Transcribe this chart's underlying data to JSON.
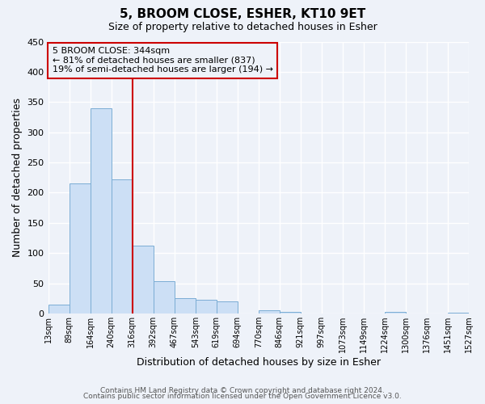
{
  "title": "5, BROOM CLOSE, ESHER, KT10 9ET",
  "subtitle": "Size of property relative to detached houses in Esher",
  "xlabel": "Distribution of detached houses by size in Esher",
  "ylabel": "Number of detached properties",
  "bin_labels": [
    "13sqm",
    "89sqm",
    "164sqm",
    "240sqm",
    "316sqm",
    "392sqm",
    "467sqm",
    "543sqm",
    "619sqm",
    "694sqm",
    "770sqm",
    "846sqm",
    "921sqm",
    "997sqm",
    "1073sqm",
    "1149sqm",
    "1224sqm",
    "1300sqm",
    "1376sqm",
    "1451sqm",
    "1527sqm"
  ],
  "counts": [
    15,
    215,
    340,
    222,
    113,
    53,
    25,
    23,
    20,
    0,
    6,
    3,
    0,
    0,
    0,
    0,
    3,
    0,
    0,
    2
  ],
  "bar_color": "#ccdff5",
  "bar_edge_color": "#7badd4",
  "vline_bin": 4,
  "vline_color": "#cc0000",
  "annotation_text": "5 BROOM CLOSE: 344sqm\n← 81% of detached houses are smaller (837)\n19% of semi-detached houses are larger (194) →",
  "annotation_box_color": "#cc0000",
  "ylim": [
    0,
    450
  ],
  "yticks": [
    0,
    50,
    100,
    150,
    200,
    250,
    300,
    350,
    400,
    450
  ],
  "footer_line1": "Contains HM Land Registry data © Crown copyright and database right 2024.",
  "footer_line2": "Contains public sector information licensed under the Open Government Licence v3.0.",
  "background_color": "#eef2f9",
  "grid_color": "#ffffff"
}
